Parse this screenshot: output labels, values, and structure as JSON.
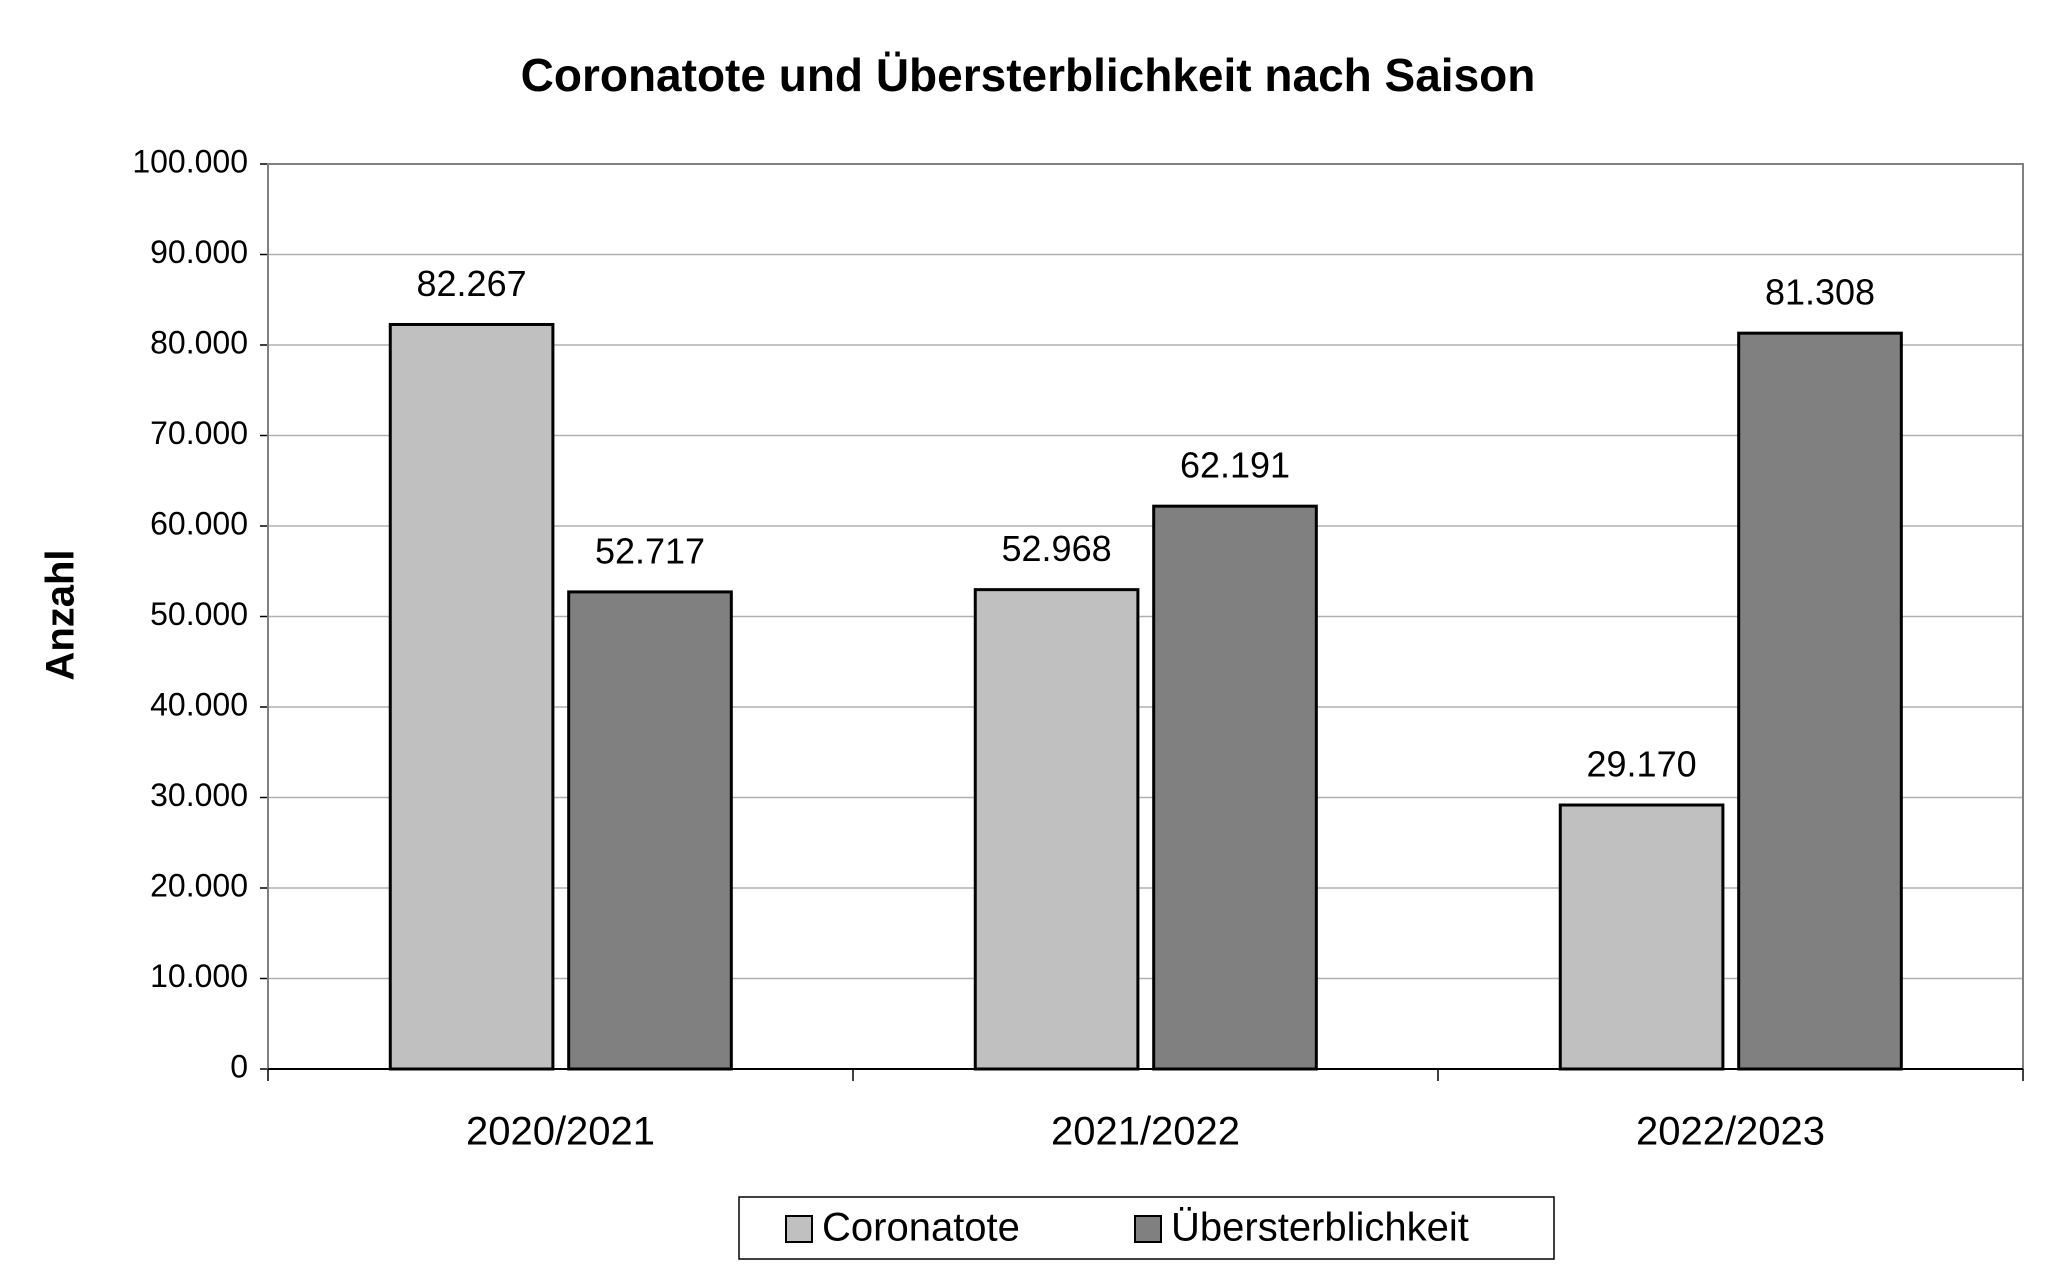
{
  "chart_data": {
    "type": "bar",
    "title": "Coronatote und Übersterblichkeit nach Saison",
    "y_label": "Anzahl",
    "categories": [
      "2020/2021",
      "2021/2022",
      "2022/2023"
    ],
    "series": [
      {
        "name": "Coronatote",
        "color": "#c0c0c0",
        "values": [
          82267,
          52968,
          29170
        ],
        "value_labels": [
          "82.267",
          "52.968",
          "29.170"
        ]
      },
      {
        "name": "Übersterblichkeit",
        "color": "#808080",
        "values": [
          52717,
          62191,
          81308
        ],
        "value_labels": [
          "52.717",
          "62.191",
          "81.308"
        ]
      }
    ],
    "ylim": [
      0,
      100000
    ],
    "yticks": [
      0,
      {
        "value": 10000,
        "label": "10.000"
      },
      {
        "value": 20000,
        "label": "20.000"
      },
      {
        "value": 30000,
        "label": "30.000"
      },
      {
        "value": 40000,
        "label": "40.000"
      },
      {
        "value": 50000,
        "label": "50.000"
      },
      {
        "value": 60000,
        "label": "60.000"
      },
      {
        "value": 70000,
        "label": "70.000"
      },
      {
        "value": 80000,
        "label": "80.000"
      },
      {
        "value": 90000,
        "label": "90.000"
      },
      {
        "value": 100000,
        "label": "100.000"
      }
    ],
    "grid": true,
    "legend": "bottom"
  }
}
